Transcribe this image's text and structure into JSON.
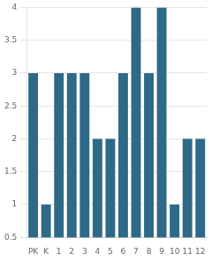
{
  "chart_data": {
    "type": "bar",
    "categories": [
      "PK",
      "K",
      "1",
      "2",
      "3",
      "4",
      "5",
      "6",
      "7",
      "8",
      "9",
      "10",
      "11",
      "12"
    ],
    "values": [
      3,
      1,
      3,
      3,
      3,
      2,
      2,
      3,
      4,
      3,
      4,
      1,
      2,
      2
    ],
    "color": "#2e6a87",
    "ylim": [
      0.5,
      4
    ],
    "yticks": [
      0.5,
      1.0,
      1.5,
      2.0,
      2.5,
      3.0,
      3.5,
      4.0
    ],
    "grid": true
  }
}
